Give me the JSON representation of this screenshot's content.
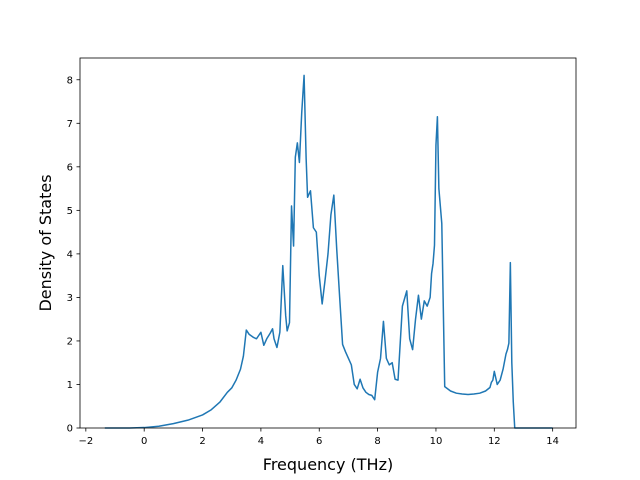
{
  "chart_data": {
    "type": "line",
    "title": "",
    "xlabel": "Frequency (THz)",
    "ylabel": "Density of States",
    "xlim": [
      -2.2,
      14.8
    ],
    "ylim": [
      0,
      8.5
    ],
    "xticks": [
      -2,
      0,
      2,
      4,
      6,
      8,
      10,
      12,
      14
    ],
    "xtick_labels": [
      "−2",
      "0",
      "2",
      "4",
      "6",
      "8",
      "10",
      "12",
      "14"
    ],
    "yticks": [
      0,
      1,
      2,
      3,
      4,
      5,
      6,
      7,
      8
    ],
    "ytick_labels": [
      "0",
      "1",
      "2",
      "3",
      "4",
      "5",
      "6",
      "7",
      "8"
    ],
    "grid": false,
    "line_color": "#1f77b4",
    "series": [
      {
        "x": [
          -1.35,
          -0.5,
          0.0,
          0.5,
          1.0,
          1.5,
          2.0,
          2.3,
          2.6,
          2.85,
          3.0,
          3.15,
          3.3,
          3.4,
          3.5,
          3.6,
          3.75,
          3.85,
          4.0,
          4.1,
          4.2,
          4.32,
          4.4,
          4.45,
          4.55,
          4.65,
          4.75,
          4.85,
          4.9,
          4.98,
          5.05,
          5.12,
          5.18,
          5.25,
          5.32,
          5.4,
          5.48,
          5.55,
          5.6,
          5.7,
          5.8,
          5.9,
          6.0,
          6.1,
          6.2,
          6.3,
          6.4,
          6.5,
          6.6,
          6.7,
          6.8,
          6.9,
          7.0,
          7.1,
          7.2,
          7.3,
          7.4,
          7.5,
          7.6,
          7.7,
          7.8,
          7.85,
          7.9,
          8.0,
          8.1,
          8.2,
          8.3,
          8.4,
          8.5,
          8.6,
          8.7,
          8.85,
          9.0,
          9.1,
          9.2,
          9.3,
          9.4,
          9.5,
          9.6,
          9.7,
          9.8,
          9.85,
          9.9,
          9.95,
          10.0,
          10.05,
          10.1,
          10.2,
          10.3,
          10.5,
          10.7,
          10.9,
          11.1,
          11.3,
          11.5,
          11.7,
          11.85,
          11.9,
          11.95,
          12.0,
          12.1,
          12.2,
          12.3,
          12.4,
          12.45,
          12.5,
          12.55,
          12.6,
          12.65,
          12.7,
          12.75,
          13.0,
          14.0
        ],
        "y": [
          0.0,
          0.0,
          0.01,
          0.04,
          0.1,
          0.18,
          0.3,
          0.42,
          0.6,
          0.82,
          0.92,
          1.1,
          1.35,
          1.65,
          2.25,
          2.15,
          2.08,
          2.05,
          2.2,
          1.9,
          2.05,
          2.18,
          2.28,
          2.05,
          1.85,
          2.2,
          3.73,
          2.58,
          2.23,
          2.42,
          5.1,
          4.18,
          6.22,
          6.55,
          6.1,
          7.25,
          8.1,
          6.2,
          5.3,
          5.45,
          4.6,
          4.5,
          3.5,
          2.85,
          3.4,
          4.0,
          4.9,
          5.35,
          4.1,
          3.0,
          1.92,
          1.75,
          1.6,
          1.45,
          1.0,
          0.9,
          1.12,
          0.92,
          0.82,
          0.77,
          0.75,
          0.7,
          0.65,
          1.28,
          1.6,
          2.45,
          1.6,
          1.45,
          1.5,
          1.12,
          1.1,
          2.8,
          3.15,
          2.05,
          1.8,
          2.5,
          3.05,
          2.5,
          2.92,
          2.8,
          3.0,
          3.55,
          3.78,
          4.2,
          6.5,
          7.15,
          5.5,
          4.7,
          0.95,
          0.85,
          0.8,
          0.78,
          0.77,
          0.78,
          0.8,
          0.85,
          0.93,
          1.05,
          1.1,
          1.3,
          1.0,
          1.1,
          1.35,
          1.7,
          1.8,
          1.95,
          3.8,
          1.5,
          0.6,
          0.0,
          0.0,
          0.0,
          0.0
        ]
      }
    ]
  }
}
